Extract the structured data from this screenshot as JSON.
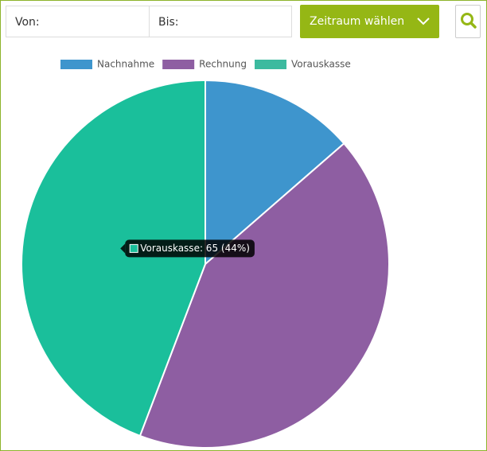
{
  "toolbar": {
    "from_label": "Von:",
    "to_label": "Bis:",
    "period_button": "Zeitraum wählen"
  },
  "chart_data": {
    "type": "pie",
    "categories": [
      "Nachnahme",
      "Rechnung",
      "Vorauskasse"
    ],
    "values": [
      20,
      62,
      65
    ],
    "colors": [
      "#3e95cd",
      "#8e5ea2",
      "#1abf9b"
    ],
    "legend_colors": [
      "#3e95cd",
      "#8e5ea2",
      "#3cba9f"
    ],
    "legend": "top",
    "tooltip": {
      "index": 2,
      "text": "Vorauskasse: 65 (44%)"
    }
  }
}
